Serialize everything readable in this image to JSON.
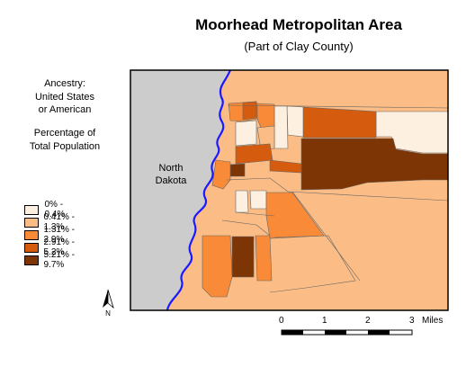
{
  "map": {
    "title": "Moorhead Metropolitan Area",
    "subtitle": "(Part of Clay County)",
    "region_label_line1": "North",
    "region_label_line2": "Dakota"
  },
  "description": {
    "line1": "Ancestry:",
    "line2": "United States",
    "line3": "or American",
    "line4": "Percentage of",
    "line5": "Total Population"
  },
  "legend": {
    "items": [
      {
        "label": "0% - 0.4%",
        "color": "#fdf0e0"
      },
      {
        "label": "0.41% - 1.3%",
        "color": "#fbbd85"
      },
      {
        "label": "1.31% - 2.9%",
        "color": "#f98a38"
      },
      {
        "label": "2.91% - 5.2%",
        "color": "#d55c0f"
      },
      {
        "label": "5.21% - 9.7%",
        "color": "#7e3506"
      }
    ]
  },
  "scale": {
    "ticks": [
      "0",
      "1",
      "2",
      "3"
    ],
    "unit": "Miles"
  },
  "north_arrow": {
    "label": "N"
  },
  "colors": {
    "north_dakota": "#cccccc",
    "river": "#1a1aff"
  }
}
